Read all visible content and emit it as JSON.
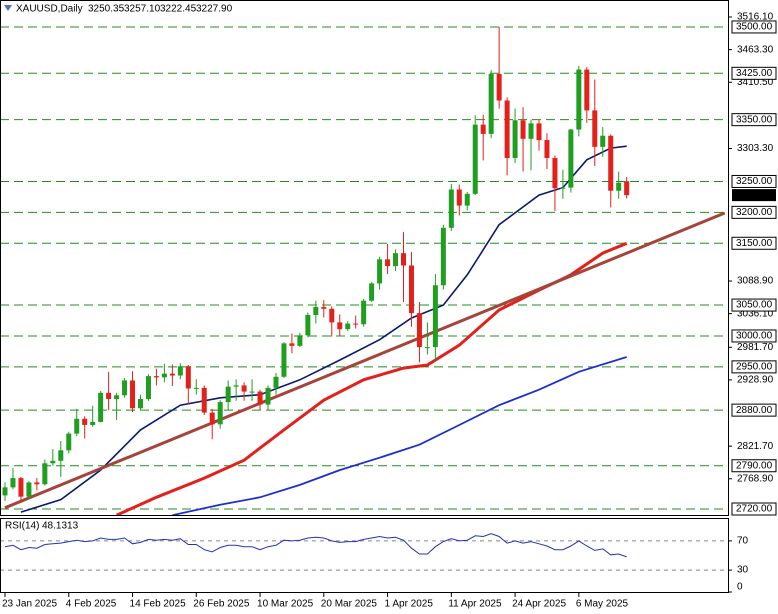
{
  "chart_data": {
    "type": "candlestick",
    "title": "XAUUSD,Daily",
    "last_labels": {
      "open": "3250.35",
      "high": "3257.10",
      "low": "3222.45",
      "close": "3227.90"
    },
    "categories": [
      "23 Jan 2025",
      null,
      null,
      null,
      null,
      null,
      null,
      null,
      "4 Feb 2025",
      null,
      null,
      null,
      null,
      null,
      null,
      null,
      "14 Feb 2025",
      null,
      null,
      null,
      null,
      null,
      null,
      null,
      "26 Feb 2025",
      null,
      null,
      null,
      null,
      null,
      null,
      null,
      "10 Mar 2025",
      null,
      null,
      null,
      null,
      null,
      null,
      null,
      "20 Mar 2025",
      null,
      null,
      null,
      null,
      null,
      null,
      null,
      "1 Apr 2025",
      null,
      null,
      null,
      null,
      null,
      null,
      null,
      "11 Apr 2025",
      null,
      null,
      null,
      null,
      null,
      null,
      null,
      "24 Apr 2025",
      null,
      null,
      null,
      null,
      null,
      null,
      null,
      "6 May 2025",
      null,
      null,
      null,
      null,
      null,
      null
    ],
    "open": [
      2742,
      2755,
      2770,
      2740,
      2763,
      2760,
      2794,
      2798,
      2815,
      2842,
      2866,
      2856,
      2861,
      2908,
      2898,
      2904,
      2928,
      2883,
      2898,
      2935,
      2933,
      2939,
      2936,
      2951,
      2915,
      2916,
      2876,
      2857,
      2893,
      2918,
      2920,
      2910,
      2910,
      2889,
      2916,
      2934,
      2988,
      2984,
      3001,
      3034,
      3047,
      3044,
      3022,
      3011,
      3020,
      3019,
      3057,
      3085,
      3124,
      3113,
      3134,
      3114,
      3037,
      2982,
      2982,
      3082,
      3175,
      3237,
      3211,
      3230,
      3342,
      3327,
      3424,
      3381,
      3288,
      3349,
      3319,
      3344,
      3317,
      3288,
      3239,
      3240,
      3334,
      3431,
      3365,
      3306,
      3324,
      3235,
      3250.35
    ],
    "high": [
      2763,
      2786,
      2772,
      2765,
      2770,
      2800,
      2817,
      2830,
      2845,
      2882,
      2870,
      2887,
      2911,
      2942,
      2908,
      2932,
      2943,
      2905,
      2938,
      2947,
      2955,
      2954,
      2956,
      2953,
      2930,
      2920,
      2882,
      2896,
      2928,
      2930,
      2925,
      2930,
      2913,
      2920,
      2940,
      2990,
      3004,
      3005,
      3038,
      3057,
      3058,
      3048,
      3035,
      3024,
      3033,
      3060,
      3087,
      3128,
      3149,
      3140,
      3168,
      3136,
      3055,
      3022,
      3100,
      3180,
      3246,
      3245,
      3233,
      3357,
      3358,
      3430,
      3500,
      3386,
      3368,
      3370,
      3350,
      3350,
      3328,
      3292,
      3269,
      3335,
      3437,
      3435,
      3415,
      3338,
      3326,
      3266,
      3257.1
    ],
    "low": [
      2733,
      2752,
      2730,
      2737,
      2750,
      2758,
      2790,
      2772,
      2810,
      2838,
      2834,
      2853,
      2860,
      2880,
      2864,
      2900,
      2877,
      2880,
      2895,
      2920,
      2925,
      2919,
      2930,
      2890,
      2905,
      2872,
      2833,
      2850,
      2880,
      2895,
      2895,
      2895,
      2880,
      2880,
      2905,
      2932,
      2972,
      2982,
      2998,
      3020,
      3030,
      2999,
      3000,
      3008,
      3012,
      3015,
      3055,
      3075,
      3100,
      3105,
      3055,
      3015,
      2957,
      2970,
      2958,
      3075,
      3170,
      3195,
      3203,
      3228,
      3284,
      3320,
      3368,
      3260,
      3280,
      3266,
      3268,
      3300,
      3270,
      3202,
      3222,
      3232,
      3323,
      3345,
      3275,
      3290,
      3208,
      3222,
      3222.45
    ],
    "close": [
      2755,
      2770,
      2740,
      2763,
      2760,
      2794,
      2798,
      2815,
      2842,
      2866,
      2856,
      2861,
      2908,
      2898,
      2904,
      2928,
      2883,
      2898,
      2935,
      2933,
      2939,
      2936,
      2951,
      2915,
      2916,
      2876,
      2857,
      2893,
      2918,
      2920,
      2910,
      2910,
      2889,
      2916,
      2934,
      2988,
      2984,
      3001,
      3034,
      3047,
      3044,
      3022,
      3011,
      3020,
      3019,
      3057,
      3085,
      3124,
      3113,
      3134,
      3114,
      3037,
      2982,
      2982,
      3082,
      3175,
      3237,
      3211,
      3230,
      3342,
      3327,
      3424,
      3381,
      3288,
      3349,
      3319,
      3344,
      3317,
      3288,
      3239,
      3240,
      3334,
      3431,
      3365,
      3306,
      3324,
      3235,
      3248,
      3227.9
    ],
    "up_color": "#1f9e1f",
    "down_color": "#e3201b",
    "ylim": [
      2710.3,
      3542
    ],
    "yticks": [
      {
        "value": 3516.1,
        "label": "3516.10"
      },
      {
        "value": 3463.3,
        "label": "3463.30"
      },
      {
        "value": 3410.5,
        "label": "3410.50"
      },
      {
        "value": 3303.3,
        "label": "3303.30"
      },
      {
        "value": 3088.9,
        "label": "3088.90"
      },
      {
        "value": 3036.1,
        "label": "3036.10"
      },
      {
        "value": 2981.7,
        "label": "2981.70"
      },
      {
        "value": 2928.9,
        "label": "2928.90"
      },
      {
        "value": 2821.7,
        "label": "2821.70"
      },
      {
        "value": 2768.9,
        "label": "2768.90"
      }
    ],
    "levels": [
      {
        "value": 3500,
        "label": "3500.00"
      },
      {
        "value": 3425,
        "label": "3425.00"
      },
      {
        "value": 3350,
        "label": "3350.00"
      },
      {
        "value": 3250,
        "label": "3250.00"
      },
      {
        "value": 3200,
        "label": "3200.00"
      },
      {
        "value": 3150,
        "label": "3150.00"
      },
      {
        "value": 3050,
        "label": "3050.00"
      },
      {
        "value": 3000,
        "label": "3000.00"
      },
      {
        "value": 2950,
        "label": "2950.00"
      },
      {
        "value": 2880,
        "label": "2880.00"
      },
      {
        "value": 2790,
        "label": "2790.00"
      },
      {
        "value": 2720,
        "label": "2720.00"
      }
    ],
    "level_color": "#1f8f1f",
    "overlays": [
      {
        "color": "#0b1a6e",
        "width": 1.6,
        "x": [
          2,
          7,
          12,
          17,
          22,
          27,
          32,
          37,
          42,
          47,
          51,
          55,
          58,
          62,
          67,
          70,
          73,
          76,
          78
        ],
        "values": [
          2715,
          2735,
          2783,
          2848,
          2888,
          2900,
          2905,
          2929,
          2961,
          2994,
          3029,
          3050,
          3099,
          3180,
          3228,
          3240,
          3285,
          3304,
          3307
        ]
      },
      {
        "color": "#e3201b",
        "width": 3,
        "x": [
          14,
          19,
          25,
          30,
          35,
          40,
          45,
          50,
          53,
          57,
          62,
          67,
          71,
          75,
          78
        ],
        "values": [
          2710,
          2739,
          2770,
          2799,
          2848,
          2896,
          2929,
          2948,
          2953,
          2985,
          3042,
          3074,
          3099,
          3134,
          3150
        ]
      },
      {
        "color": "#1b2fd0",
        "width": 1.8,
        "x": [
          21,
          27,
          32,
          37,
          42,
          47,
          52,
          57,
          62,
          67,
          72,
          78
        ],
        "values": [
          2710,
          2727,
          2739,
          2759,
          2783,
          2803,
          2824,
          2856,
          2888,
          2913,
          2942,
          2966
        ]
      }
    ],
    "trendline": {
      "color": "#a5443a",
      "x": [
        0,
        90.3
      ],
      "values": [
        2722,
        3199
      ]
    },
    "rsi": {
      "label": "RSI(14)",
      "color": "#2233bb",
      "ylim": [
        0,
        100
      ],
      "yticks": [
        0,
        30,
        70
      ],
      "levels": [
        30,
        70
      ],
      "values": [
        62,
        64,
        58,
        61,
        60,
        65,
        66,
        67,
        69,
        71,
        69,
        70,
        74,
        72,
        72,
        74,
        66,
        68,
        72,
        71,
        72,
        71,
        73,
        65,
        65,
        58,
        55,
        61,
        64,
        64,
        62,
        62,
        58,
        62,
        64,
        71,
        70,
        71,
        74,
        75,
        74,
        70,
        68,
        69,
        69,
        72,
        74,
        76,
        74,
        75,
        71,
        60,
        52,
        52,
        62,
        69,
        73,
        70,
        71,
        77,
        76,
        80,
        76,
        67,
        70,
        67,
        69,
        66,
        63,
        58,
        58,
        63,
        70,
        63,
        57,
        59,
        51,
        52,
        48.1313
      ]
    }
  }
}
